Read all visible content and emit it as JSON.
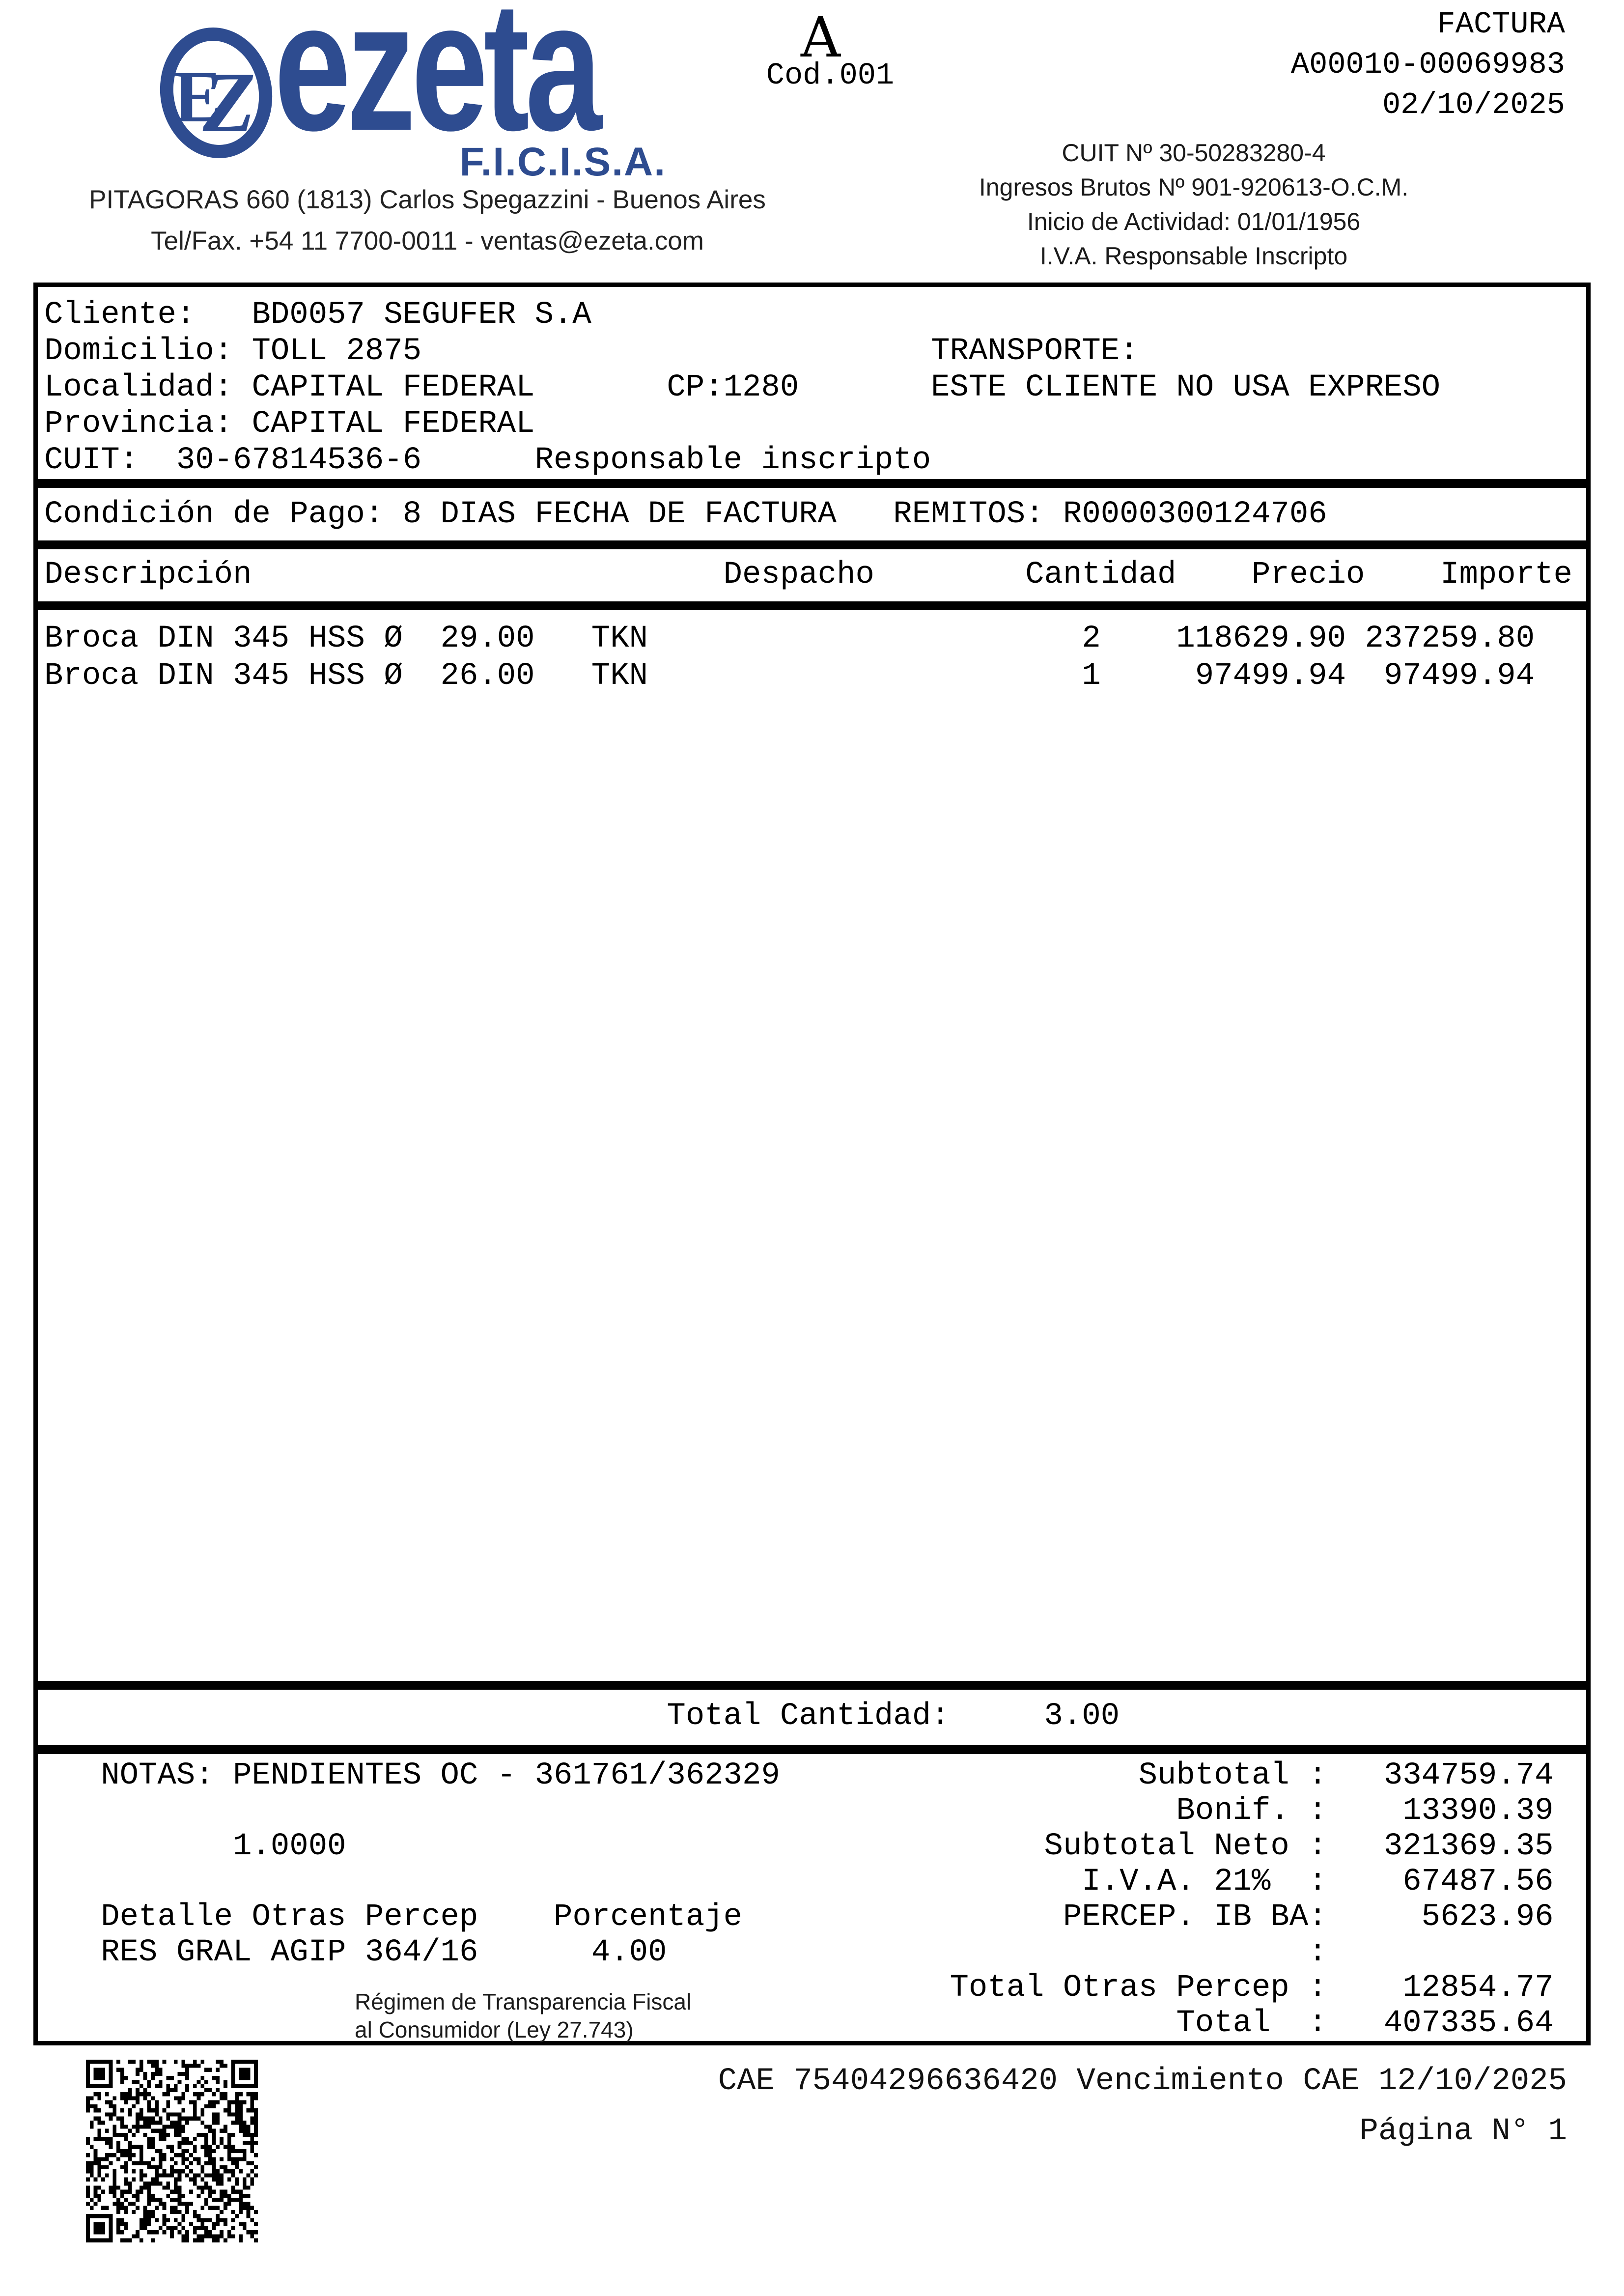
{
  "colors": {
    "brand_blue": "#2e4c90",
    "text": "#111111"
  },
  "header": {
    "logo": {
      "monogram": "EZ",
      "brand": "ezeta",
      "subtitle": "F.I.C.I.S.A."
    },
    "address_line1": "PITAGORAS 660 (1813) Carlos Spegazzini - Buenos Aires",
    "address_line2": "Tel/Fax. +54 11 7700-0011 -  ventas@ezeta.com",
    "invoice_letter": "A",
    "invoice_code": "Cod.001",
    "doc_label": "FACTURA",
    "doc_number": "A00010-00069983",
    "doc_date": "02/10/2025",
    "fiscal_lines": [
      "CUIT Nº 30-50283280-4",
      "Ingresos Brutos Nº 901-920613-O.C.M.",
      "Inicio de Actividad: 01/01/1956",
      "I.V.A. Responsable Inscripto"
    ]
  },
  "client": {
    "cliente_codigo": "BD0057",
    "cliente_nombre": "SEGUFER S.A",
    "domicilio": "TOLL 2875",
    "localidad": "CAPITAL FEDERAL",
    "cp": "1280",
    "provincia": "CAPITAL FEDERAL",
    "cuit": "30-67814536-6",
    "condicion_iva": "Responsable inscripto",
    "transporte_label": "TRANSPORTE:",
    "transporte": "ESTE CLIENTE NO USA EXPRESO",
    "lines": [
      "Cliente:   BD0057 SEGUFER S.A",
      "Domicilio: TOLL 2875                           TRANSPORTE:",
      "Localidad: CAPITAL FEDERAL       CP:1280       ESTE CLIENTE NO USA EXPRESO",
      "Provincia: CAPITAL FEDERAL",
      "CUIT:  30-67814536-6      Responsable inscripto"
    ]
  },
  "payment": {
    "condicion": "8 DIAS FECHA DE FACTURA",
    "remitos": "R0000300124706",
    "line": "Condición de Pago: 8 DIAS FECHA DE FACTURA   REMITOS: R0000300124706"
  },
  "table": {
    "columns": [
      "Descripción",
      "Despacho",
      "Cantidad",
      "Precio",
      "Importe"
    ],
    "header_line": "Descripción                         Despacho        Cantidad    Precio    Importe",
    "items": [
      {
        "descripcion": "Broca DIN 345 HSS Ø 29.00",
        "despacho": "TKN",
        "cantidad": "2",
        "precio": "118629.90",
        "importe": "237259.80"
      },
      {
        "descripcion": "Broca DIN 345 HSS Ø 26.00",
        "despacho": "TKN",
        "cantidad": "1",
        "precio": "97499.94",
        "importe": "97499.94"
      }
    ],
    "item_lines": [
      "Broca DIN 345 HSS Ø  29.00   TKN                       2    118629.90 237259.80",
      "Broca DIN 345 HSS Ø  26.00   TKN                       1     97499.94  97499.94"
    ],
    "total_cantidad": "3.00",
    "total_line": "                                 Total Cantidad:     3.00"
  },
  "summary": {
    "notas": "PENDIENTES OC - 361761/362329",
    "factor": "1.0000",
    "subtotal": "334759.74",
    "bonif": "13390.39",
    "subtotal_neto": "321369.35",
    "iva_21": "67487.56",
    "percep_ib_ba": "5623.96",
    "total_otras_percep": "12854.77",
    "total": "407335.64",
    "otras_percepciones": [
      {
        "detalle": "RES GRAL AGIP 364/16",
        "porcentaje": "4.00"
      }
    ],
    "lines": [
      "   NOTAS: PENDIENTES OC - 361761/362329                   Subtotal :   334759.74",
      "                                                            Bonif. :    13390.39",
      "          1.0000                                     Subtotal Neto :   321369.35",
      "                                                       I.V.A. 21%  :    67487.56",
      "   Detalle Otras Percep    Porcentaje                 PERCEP. IB BA:     5623.96",
      "   RES GRAL AGIP 364/16      4.00                                  :",
      "                                                Total Otras Percep :    12854.77",
      "                                                            Total  :   407335.64"
    ]
  },
  "regimen": {
    "text": "Régimen de Transparencia Fiscal\nal Consumidor (Ley 27.743)"
  },
  "footer": {
    "cae": "75404296636420",
    "cae_vencimiento": "12/10/2025",
    "cae_line": "CAE 75404296636420 Vencimiento CAE 12/10/2025",
    "page_line": "Página N° 1"
  }
}
